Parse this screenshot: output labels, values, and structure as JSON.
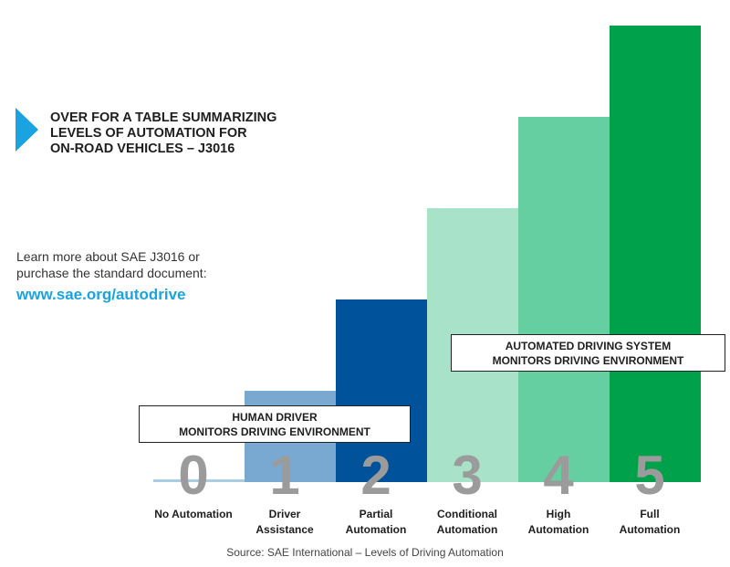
{
  "promo": {
    "heading": "OVER FOR A TABLE SUMMARIZING\nLEVELS OF AUTOMATION FOR\nON-ROAD VEHICLES – J3016",
    "learn_more": "Learn more about SAE J3016 or\npurchase the standard document:",
    "link": "www.sae.org/autodrive",
    "accent_color": "#1aa3e0"
  },
  "chart_data": {
    "type": "bar",
    "categories": [
      "0",
      "1",
      "2",
      "3",
      "4",
      "5"
    ],
    "category_labels": [
      "No Automation",
      "Driver\nAssistance",
      "Partial\nAutomation",
      "Conditional\nAutomation",
      "High\nAutomation",
      "Full\nAutomation"
    ],
    "values": [
      0,
      1,
      2,
      3,
      4,
      5
    ],
    "colors": [
      "#a9cde3",
      "#79a8d0",
      "#00529b",
      "#a8e3c9",
      "#66cfa1",
      "#00a14b"
    ],
    "ylim": [
      0,
      5
    ],
    "grid": false,
    "annotations": [
      {
        "text": "HUMAN DRIVER\nMONITORS DRIVING ENVIRONMENT",
        "levels": [
          "0",
          "1",
          "2"
        ]
      },
      {
        "text": "AUTOMATED DRIVING SYSTEM\nMONITORS DRIVING ENVIRONMENT",
        "levels": [
          "3",
          "4",
          "5"
        ]
      }
    ],
    "source": "Source: SAE International – Levels of Driving Automation"
  }
}
